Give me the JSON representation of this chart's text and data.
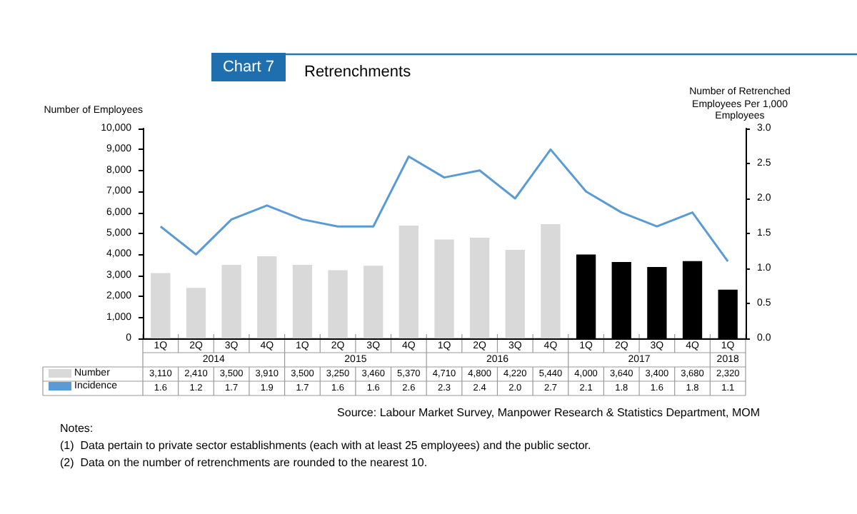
{
  "chart_data": {
    "type": "bar",
    "subtitle": "Chart 7",
    "title": "Retrenchments",
    "ylabel": "Number of Employees",
    "y2label": "Number of Retrenched Employees Per 1,000 Employees",
    "categories": [
      "1Q",
      "2Q",
      "3Q",
      "4Q",
      "1Q",
      "2Q",
      "3Q",
      "4Q",
      "1Q",
      "2Q",
      "3Q",
      "4Q",
      "1Q",
      "2Q",
      "3Q",
      "4Q",
      "1Q"
    ],
    "series": [
      {
        "name": "Number",
        "color": "#d9d9d9",
        "colors": [
          "#d9d9d9",
          "#d9d9d9",
          "#d9d9d9",
          "#d9d9d9",
          "#d9d9d9",
          "#d9d9d9",
          "#d9d9d9",
          "#d9d9d9",
          "#d9d9d9",
          "#d9d9d9",
          "#d9d9d9",
          "#d9d9d9",
          "#000000",
          "#000000",
          "#000000",
          "#000000",
          "#000000"
        ],
        "values": [
          3110,
          2410,
          3500,
          3910,
          3500,
          3250,
          3460,
          5370,
          4710,
          4800,
          4220,
          5440,
          4000,
          3640,
          3400,
          3680,
          2320
        ],
        "value_labels": [
          "3,110",
          "2,410",
          "3,500",
          "3,910",
          "3,500",
          "3,250",
          "3,460",
          "5,370",
          "4,710",
          "4,800",
          "4,220",
          "5,440",
          "4,000",
          "3,640",
          "3,400",
          "3,680",
          "2,320"
        ]
      },
      {
        "name": "Incidence",
        "type": "line",
        "axis": "y2",
        "color": "#5b9bd5",
        "marker": "none",
        "line_style": "solid",
        "values": [
          1.6,
          1.2,
          1.7,
          1.9,
          1.7,
          1.6,
          1.6,
          2.6,
          2.3,
          2.4,
          2.0,
          2.7,
          2.1,
          1.8,
          1.6,
          1.8,
          1.1
        ],
        "value_labels": [
          "1.6",
          "1.2",
          "1.7",
          "1.9",
          "1.7",
          "1.6",
          "1.6",
          "2.6",
          "2.3",
          "2.4",
          "2.0",
          "2.7",
          "2.1",
          "1.8",
          "1.6",
          "1.8",
          "1.1"
        ]
      }
    ],
    "ylim": [
      0,
      10000
    ],
    "yticks": [
      0,
      {
        "value": 1000,
        "label": "1,000"
      },
      {
        "value": 2000,
        "label": "2,000"
      },
      {
        "value": 3000,
        "label": "3,000"
      },
      {
        "value": 4000,
        "label": "4,000"
      },
      {
        "value": 5000,
        "label": "5,000"
      },
      {
        "value": 6000,
        "label": "6,000"
      },
      {
        "value": 7000,
        "label": "7,000"
      },
      {
        "value": 8000,
        "label": "8,000"
      },
      {
        "value": 9000,
        "label": "9,000"
      },
      {
        "value": 10000,
        "label": "10,000"
      }
    ],
    "y2lim": [
      0,
      3
    ],
    "y2ticks": [
      {
        "value": 0,
        "label": "0.0"
      },
      0.5,
      {
        "value": 1,
        "label": "1.0"
      },
      1.5,
      {
        "value": 2,
        "label": "2.0"
      },
      2.5,
      {
        "value": 3,
        "label": "3.0"
      }
    ],
    "grid": false,
    "legend": "bottom left",
    "annotations": [
      "2014",
      "2015",
      "2016",
      "2017",
      "2018",
      "Source: Labour Market Survey, Manpower Research & Statistics Department, MOM",
      "Notes:",
      "(1)  Data pertain to private sector establishments (each with at least 25 employees) and the public sector.",
      "(2)  Data on the number of retrenchments are rounded to the nearest 10."
    ]
  }
}
